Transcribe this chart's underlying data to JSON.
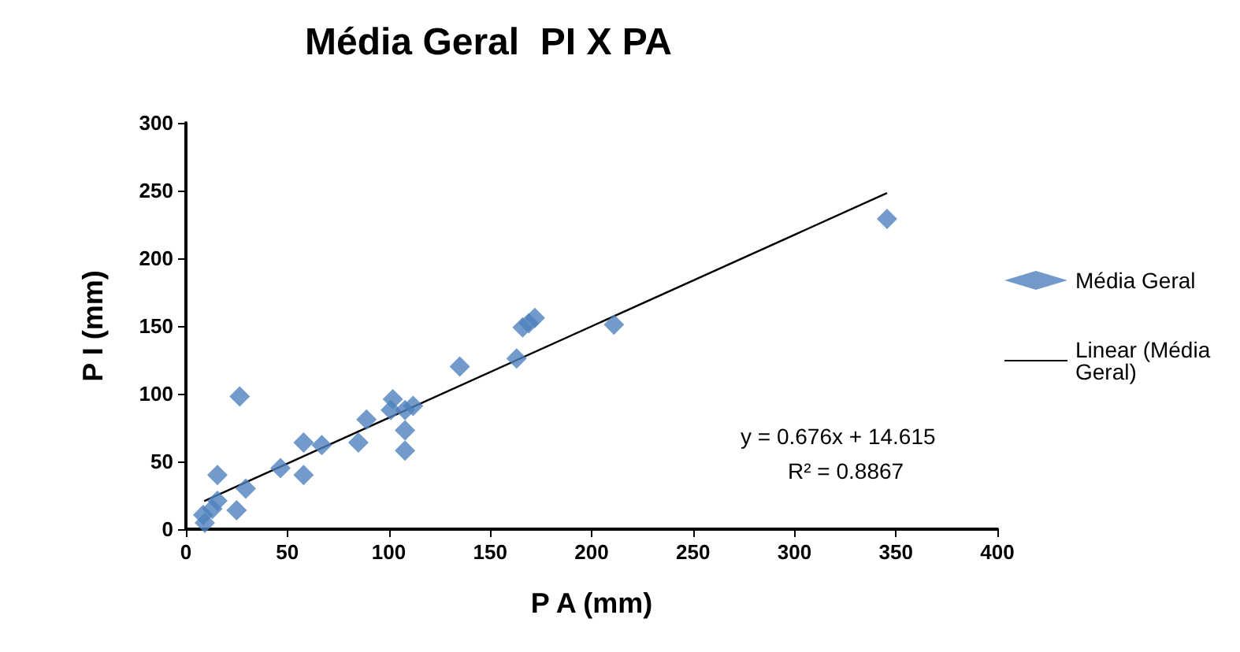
{
  "chart_data": {
    "type": "scatter",
    "title": "Média Geral  PI X PA",
    "xlabel": "P A (mm)",
    "ylabel": "P I (mm)",
    "xlim": [
      0,
      400
    ],
    "xticks": [
      0,
      50,
      100,
      150,
      200,
      250,
      300,
      350,
      400
    ],
    "ylim": [
      0,
      300
    ],
    "yticks": [
      0,
      50,
      100,
      150,
      200,
      250,
      300
    ],
    "grid": false,
    "legend": "right",
    "marker": "diamond",
    "annotations": [
      "y = 0.676x + 14.615",
      "R² = 0.8867"
    ],
    "series": [
      {
        "name": "Média Geral",
        "color": "#4f81bd",
        "x": [
          9.3,
          8.5,
          13,
          15.5,
          15.5,
          25,
          26.5,
          29.5,
          46.6,
          58,
          58,
          67,
          85,
          89,
          102,
          101,
          108,
          112,
          108,
          108,
          135,
          163,
          166,
          169,
          172,
          211,
          345.6
        ],
        "values": [
          4.7,
          10.5,
          15,
          21,
          40,
          14,
          98,
          30,
          45,
          64,
          40,
          62,
          64,
          81,
          96,
          88,
          88,
          91,
          73,
          58,
          120,
          126,
          149,
          152,
          156,
          151,
          229
        ]
      },
      {
        "name": "Linear (Média Geral)",
        "type": "line",
        "color": "#000000",
        "marker": "none",
        "x": [
          9,
          345.6
        ],
        "values": [
          20.7,
          248.2
        ]
      }
    ]
  }
}
